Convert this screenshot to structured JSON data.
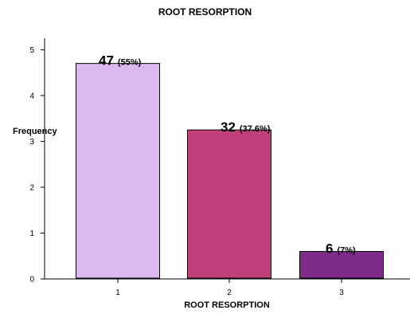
{
  "chart_data": {
    "type": "bar",
    "title": "ROOT RESORPTION",
    "xlabel": "ROOT RESORPTION",
    "ylabel": "Frequency",
    "categories": [
      "1",
      "2",
      "3"
    ],
    "values": [
      4.7,
      3.25,
      0.6
    ],
    "ylim": [
      0,
      5.25
    ],
    "yticks": [
      "0",
      "1",
      "2",
      "3",
      "4",
      "5"
    ],
    "grid": false,
    "bar_colors": [
      "#dcb8f0",
      "#c0407c",
      "#7e2b8a"
    ],
    "data_labels": [
      {
        "count": "47",
        "percent": "(55%)"
      },
      {
        "count": "32",
        "percent": "(37.6%)"
      },
      {
        "count": "6",
        "percent": "(7%)"
      }
    ]
  }
}
